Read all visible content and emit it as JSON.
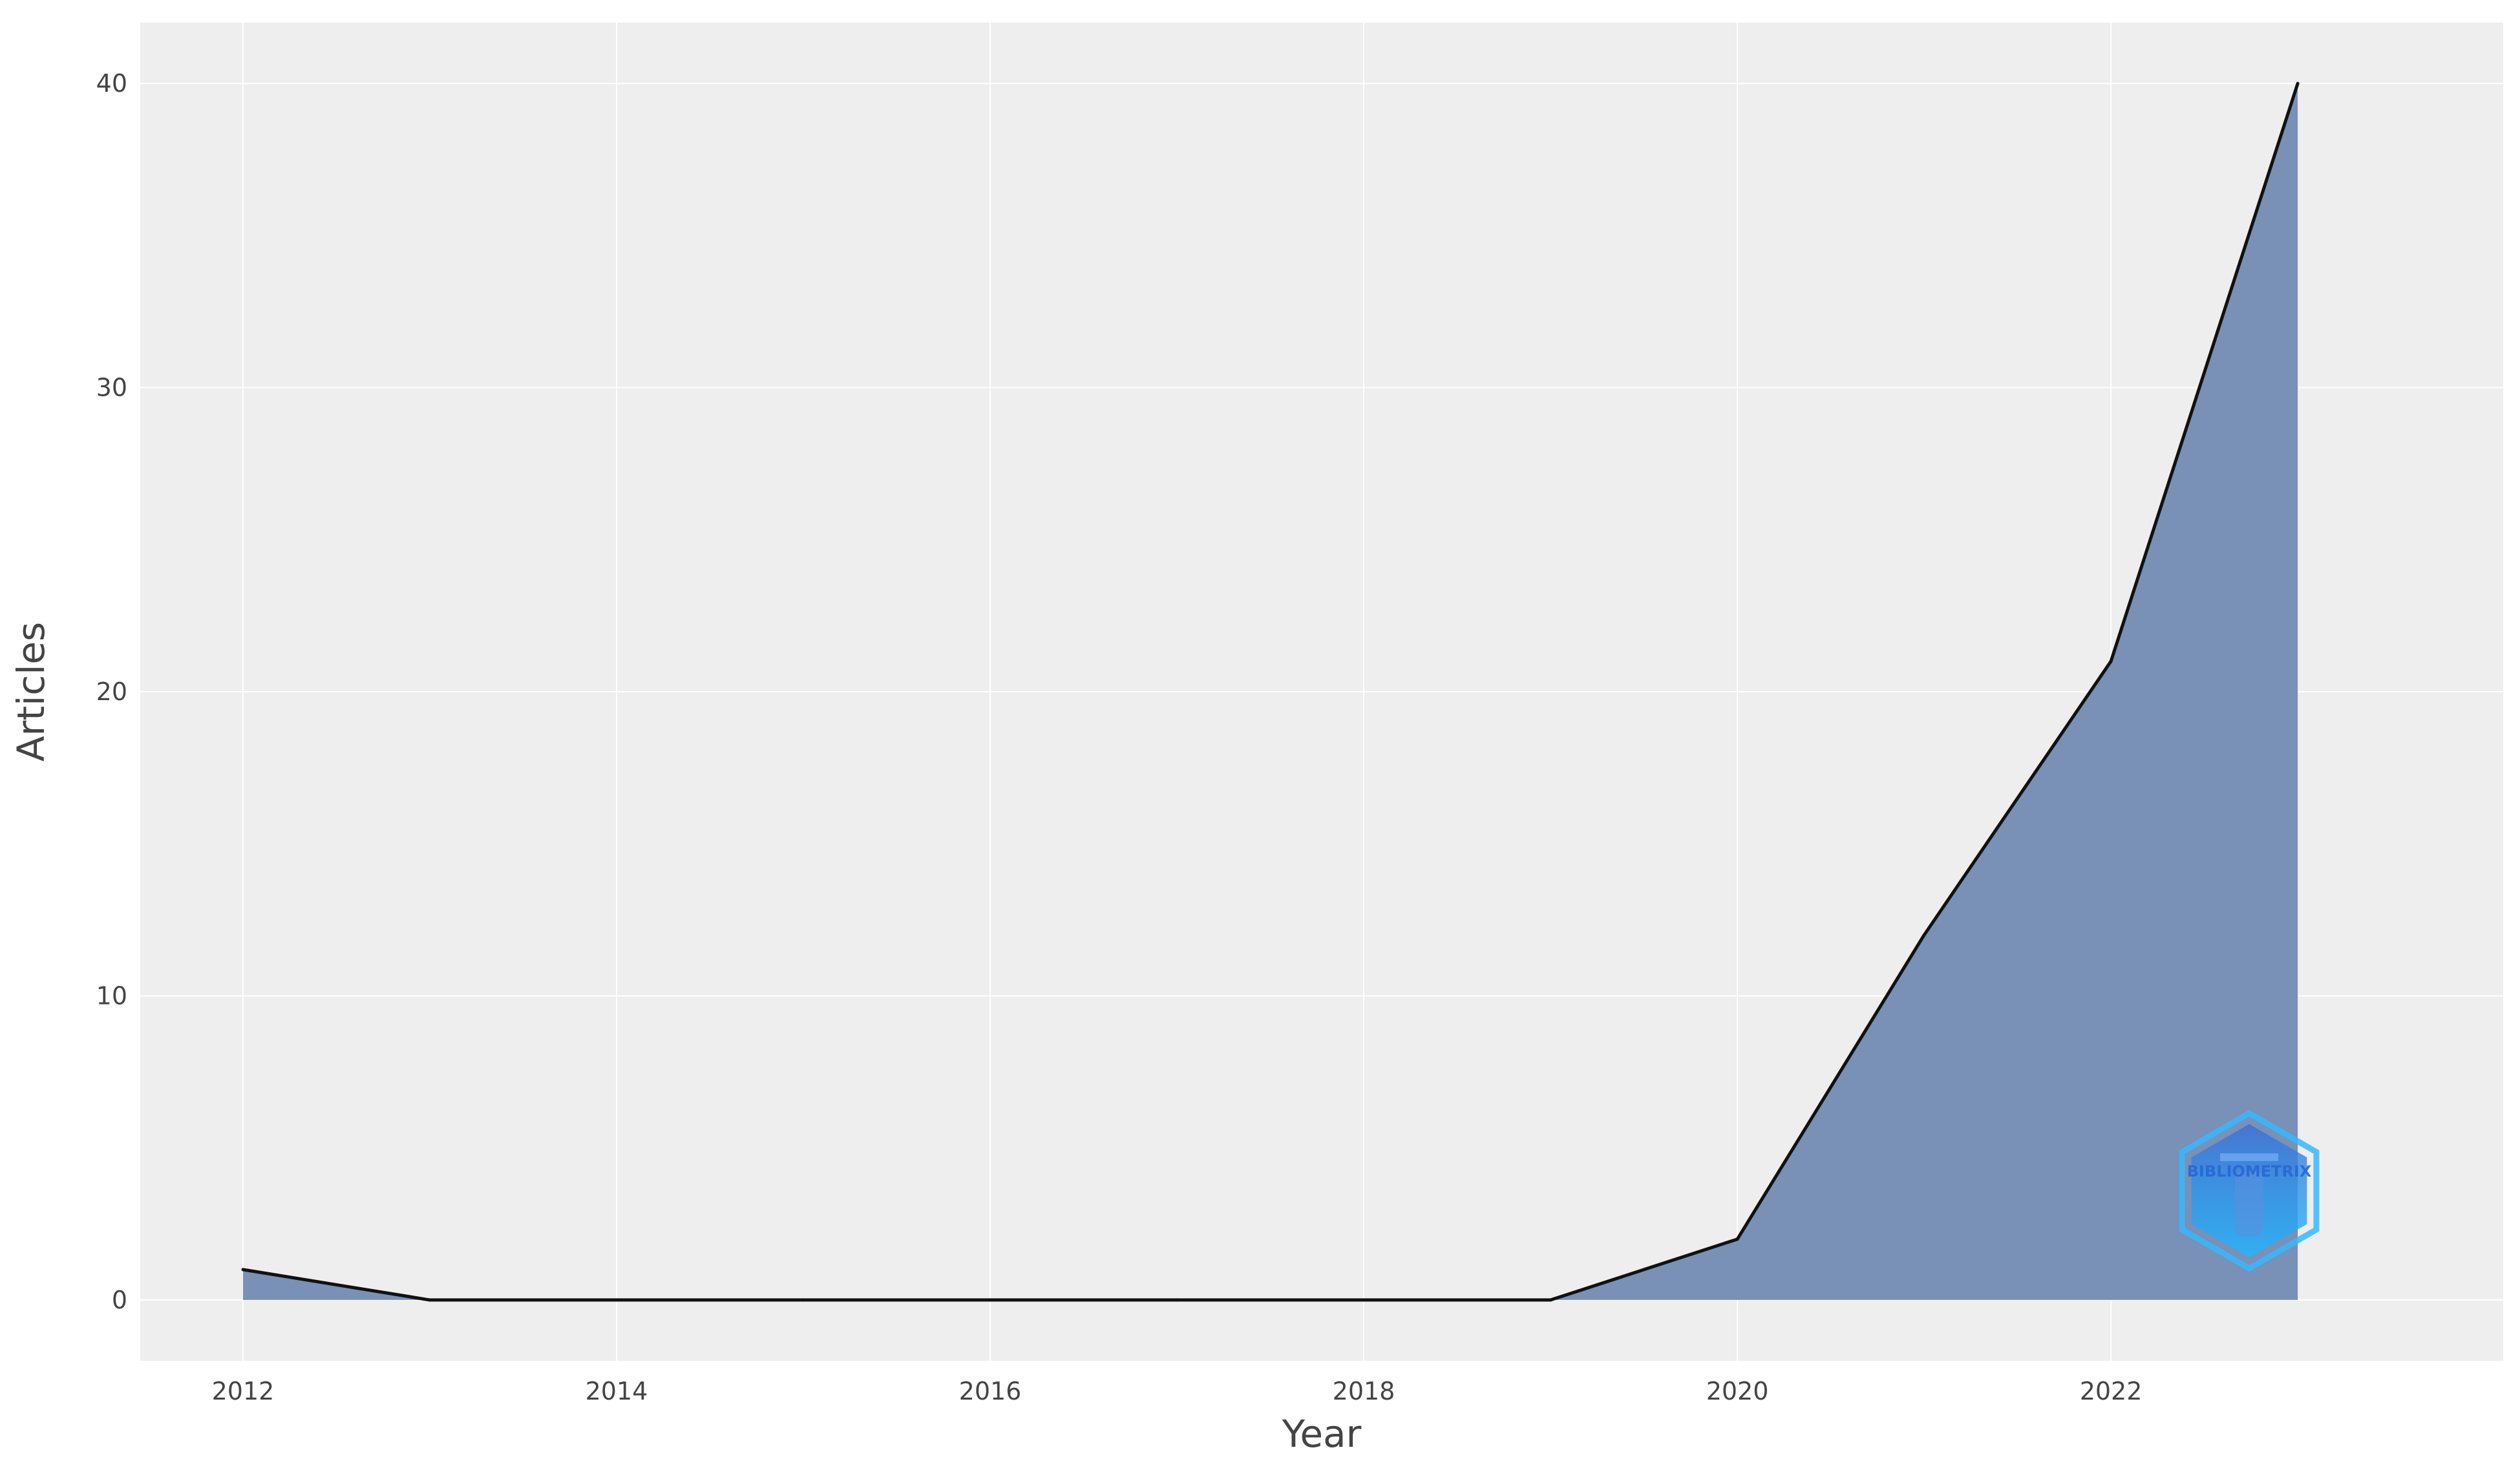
{
  "chart_data": {
    "type": "area",
    "title": "",
    "xlabel": "Year",
    "ylabel": "Articles",
    "x": [
      2012,
      2013,
      2014,
      2015,
      2016,
      2017,
      2018,
      2019,
      2020,
      2021,
      2022,
      2023
    ],
    "series": [
      {
        "values": [
          1,
          0,
          0,
          0,
          0,
          0,
          0,
          0,
          2,
          12,
          21,
          40
        ]
      }
    ],
    "xlim": [
      2011.45,
      2024.1
    ],
    "ylim": [
      -2,
      42
    ],
    "xticks": [
      "2012",
      "2014",
      "2016",
      "2018",
      "2020",
      "2022"
    ],
    "yticks": [
      "0",
      "10",
      "20",
      "30",
      "40"
    ],
    "grid": true,
    "legend": "none",
    "colors": {
      "plot_background": "#eeeeee",
      "grid": "#ffffff",
      "area_fill": "#7990b7",
      "line": "#111111",
      "tick_text": "#444444"
    },
    "watermark": {
      "text": "BIBLIOMETRIX",
      "icon": "bibliometrix-logo-icon"
    }
  }
}
